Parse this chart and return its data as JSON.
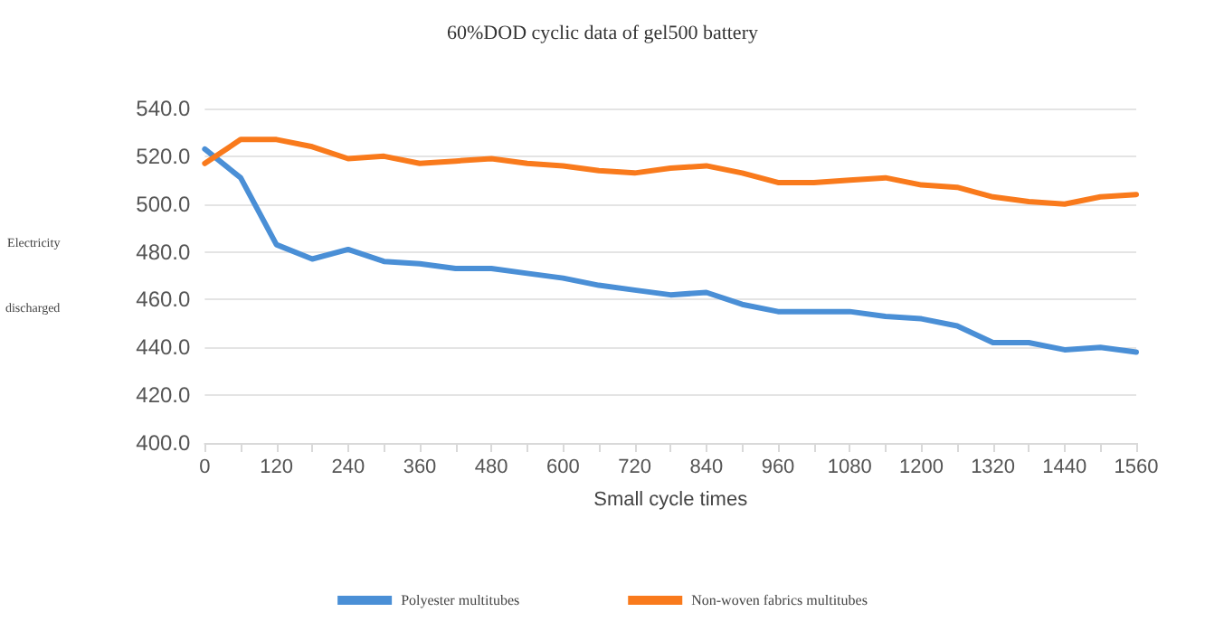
{
  "chart_data": {
    "type": "line",
    "title": "60%DOD cyclic data of gel500 battery",
    "xlabel": "Small cycle times",
    "ylabel": "Electricity discharged",
    "categories": [
      "0",
      null,
      "120",
      null,
      "240",
      null,
      "360",
      null,
      "480",
      null,
      "600",
      null,
      "720",
      null,
      "840",
      null,
      "960",
      null,
      "1080",
      null,
      "1200",
      null,
      "1320",
      null,
      "1440",
      null,
      "1560"
    ],
    "series": [
      {
        "name": "Polyester multitubes",
        "color": "#4a8fd6",
        "values": [
          523,
          511,
          483,
          477,
          481,
          476,
          475,
          473,
          473,
          471,
          469,
          466,
          464,
          462,
          463,
          458,
          455,
          455,
          455,
          453,
          452,
          449,
          442,
          442,
          439,
          440,
          438
        ]
      },
      {
        "name": "Non-woven fabrics multitubes",
        "color": "#f97a1c",
        "values": [
          517,
          527,
          527,
          524,
          519,
          520,
          517,
          518,
          519,
          517,
          516,
          514,
          513,
          515,
          516,
          513,
          509,
          509,
          510,
          511,
          508,
          507,
          503,
          501,
          500,
          503,
          504
        ]
      }
    ],
    "ylim": [
      400,
      540
    ],
    "yticks": [
      {
        "value": 400,
        "label": "400.0"
      },
      {
        "value": 420,
        "label": "420.0"
      },
      {
        "value": 440,
        "label": "440.0"
      },
      {
        "value": 460,
        "label": "460.0"
      },
      {
        "value": 480,
        "label": "480.0"
      },
      {
        "value": 500,
        "label": "500.0"
      },
      {
        "value": 520,
        "label": "520.0"
      },
      {
        "value": 540,
        "label": "540.0"
      }
    ],
    "grid": "y",
    "legend": "bottom",
    "marker": "none",
    "line_style": "solid"
  }
}
